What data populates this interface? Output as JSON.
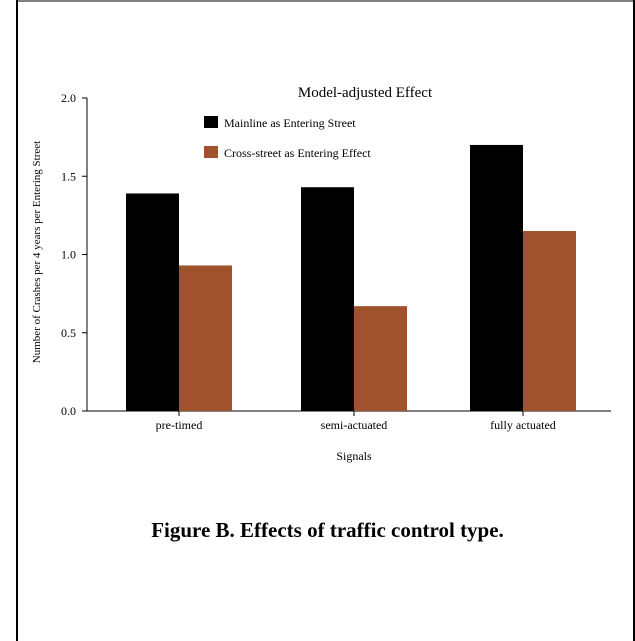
{
  "figure": {
    "caption": "Figure B. Effects of traffic control type."
  },
  "chart_data": {
    "type": "bar",
    "title": "Model-adjusted Effect",
    "xlabel": "Signals",
    "ylabel": "Number of Crashes per 4 years per Entering Street",
    "categories": [
      "pre-timed",
      "semi-actuated",
      "fully actuated"
    ],
    "series": [
      {
        "name": "Mainline as Entering Street",
        "color": "#000000",
        "values": [
          1.39,
          1.43,
          1.7
        ]
      },
      {
        "name": "Cross-street as Entering Effect",
        "color": "#a0522d",
        "values": [
          0.93,
          0.67,
          1.15
        ]
      }
    ],
    "ylim": [
      0,
      2.0
    ],
    "yticks": [
      "0.0",
      "0.5",
      "1.0",
      "1.5",
      "2.0"
    ],
    "grid": false,
    "legend": "top-center"
  }
}
